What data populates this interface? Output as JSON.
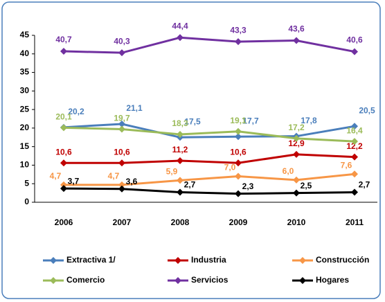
{
  "chart_data": {
    "type": "line",
    "categories": [
      "2006",
      "2007",
      "2008",
      "2009",
      "2010",
      "2011"
    ],
    "ylim": [
      0,
      45
    ],
    "yticks": [
      0,
      5,
      10,
      15,
      20,
      25,
      30,
      35,
      40,
      45
    ],
    "grid": false,
    "legend": "bottom",
    "series": [
      {
        "name": "Extractiva 1/",
        "color": "#4a7ebb",
        "values": [
          20.2,
          21.1,
          17.5,
          17.7,
          17.8,
          20.5
        ],
        "value_labels": [
          "20,2",
          "21,1",
          "17,5",
          "17,7",
          "17,8",
          "20,5"
        ]
      },
      {
        "name": "Industria",
        "color": "#c00000",
        "values": [
          10.6,
          10.6,
          11.2,
          10.6,
          12.9,
          12.2
        ],
        "value_labels": [
          "10,6",
          "10,6",
          "11,2",
          "10,6",
          "12,9",
          "12,2"
        ]
      },
      {
        "name": "Construcción",
        "color": "#f79646",
        "values": [
          4.7,
          4.7,
          5.9,
          7.0,
          6.0,
          7.6
        ],
        "value_labels": [
          "4,7",
          "4,7",
          "5,9",
          "7,0",
          "6,0",
          "7,6"
        ]
      },
      {
        "name": "Comercio",
        "color": "#9bbb59",
        "values": [
          20.1,
          19.7,
          18.3,
          19.1,
          17.2,
          16.4
        ],
        "value_labels": [
          "20,1",
          "19,7",
          "18,3",
          "19,1",
          "17,2",
          "16,4"
        ]
      },
      {
        "name": "Servicios",
        "color": "#7030a0",
        "values": [
          40.7,
          40.3,
          44.4,
          43.3,
          43.6,
          40.6
        ],
        "value_labels": [
          "40,7",
          "40,3",
          "44,4",
          "43,3",
          "43,6",
          "40,6"
        ]
      },
      {
        "name": "Hogares",
        "color": "#000000",
        "values": [
          3.7,
          3.6,
          2.7,
          2.3,
          2.5,
          2.7
        ],
        "value_labels": [
          "3,7",
          "3,6",
          "2,7",
          "2,3",
          "2,5",
          "2,7"
        ]
      }
    ]
  }
}
